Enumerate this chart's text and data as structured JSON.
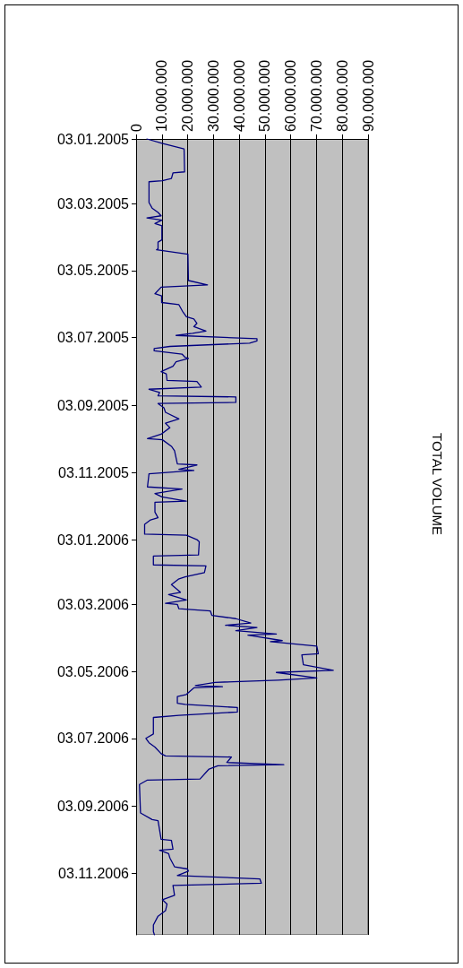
{
  "chart_data": {
    "type": "line",
    "title": "TOTAL VOLUME",
    "color": "#000080",
    "grid": "x",
    "line_style": "solid",
    "orientation": "horizontal",
    "x": [
      "2005-01-03",
      "2005-01-07",
      "2005-01-12",
      "2005-02-02",
      "2005-02-03",
      "2005-02-08",
      "2005-02-10",
      "2005-02-11",
      "2005-03-02",
      "2005-03-07",
      "2005-03-11",
      "2005-03-14",
      "2005-03-16",
      "2005-03-18",
      "2005-03-21",
      "2005-03-23",
      "2005-04-05",
      "2005-04-07",
      "2005-04-13",
      "2005-04-14",
      "2005-04-18",
      "2005-05-12",
      "2005-05-16",
      "2005-05-18",
      "2005-05-24",
      "2005-05-26",
      "2005-06-01",
      "2005-06-03",
      "2005-06-09",
      "2005-06-14",
      "2005-06-16",
      "2005-06-20",
      "2005-06-23",
      "2005-06-27",
      "2005-06-29",
      "2005-07-01",
      "2005-07-04",
      "2005-07-06",
      "2005-07-08",
      "2005-07-11",
      "2005-07-13",
      "2005-07-15",
      "2005-07-18",
      "2005-07-21",
      "2005-07-22",
      "2005-07-25",
      "2005-07-29",
      "2005-08-03",
      "2005-08-05",
      "2005-08-11",
      "2005-08-12",
      "2005-08-17",
      "2005-08-19",
      "2005-08-22",
      "2005-08-25",
      "2005-08-26",
      "2005-08-31",
      "2005-09-01",
      "2005-09-05",
      "2005-09-09",
      "2005-09-15",
      "2005-09-19",
      "2005-09-23",
      "2005-09-29",
      "2005-10-03",
      "2005-10-04",
      "2005-10-10",
      "2005-10-14",
      "2005-10-26",
      "2005-10-27",
      "2005-10-31",
      "2005-11-01",
      "2005-11-04",
      "2005-11-16",
      "2005-11-18",
      "2005-11-22",
      "2005-11-25",
      "2005-11-29",
      "2005-11-30",
      "2005-12-09",
      "2005-12-14",
      "2005-12-16",
      "2005-12-20",
      "2005-12-29",
      "2005-12-30",
      "2006-01-03",
      "2006-01-05",
      "2006-01-17",
      "2006-01-18",
      "2006-01-26",
      "2006-01-27",
      "2006-02-02",
      "2006-02-06",
      "2006-02-08",
      "2006-02-13",
      "2006-02-20",
      "2006-02-22",
      "2006-02-27",
      "2006-03-02",
      "2006-03-03",
      "2006-03-07",
      "2006-03-09",
      "2006-03-13",
      "2006-03-16",
      "2006-03-20",
      "2006-03-22",
      "2006-03-24",
      "2006-03-27",
      "2006-03-30",
      "2006-03-31",
      "2006-04-05",
      "2006-04-06",
      "2006-04-10",
      "2006-04-17",
      "2006-04-18",
      "2006-04-27",
      "2006-05-02",
      "2006-05-04",
      "2006-05-09",
      "2006-05-11",
      "2006-05-13",
      "2006-05-16",
      "2006-05-17",
      "2006-05-18",
      "2006-05-24",
      "2006-05-26",
      "2006-06-01",
      "2006-06-02",
      "2006-06-05",
      "2006-06-09",
      "2006-06-12",
      "2006-06-14",
      "2006-06-29",
      "2006-07-03",
      "2006-07-07",
      "2006-07-11",
      "2006-07-17",
      "2006-07-19",
      "2006-07-20",
      "2006-07-25",
      "2006-07-27",
      "2006-07-28",
      "2006-07-31",
      "2006-08-03",
      "2006-08-09",
      "2006-08-10",
      "2006-08-14",
      "2006-09-09",
      "2006-09-15",
      "2006-09-16",
      "2006-10-03",
      "2006-10-04",
      "2006-10-12",
      "2006-10-13",
      "2006-10-16",
      "2006-10-20",
      "2006-10-28",
      "2006-10-30",
      "2006-11-01",
      "2006-11-05",
      "2006-11-08",
      "2006-11-12",
      "2006-11-14",
      "2006-11-23",
      "2006-11-27",
      "2006-12-01",
      "2006-12-07",
      "2006-12-12",
      "2006-12-20",
      "2006-12-26",
      "2006-12-29"
    ],
    "values": [
      4200000,
      10000000,
      18600000,
      18800000,
      14300000,
      13700000,
      10200000,
      5000000,
      5000000,
      6200000,
      8500000,
      9700000,
      4200000,
      10000000,
      7300000,
      10000000,
      10000000,
      8500000,
      8500000,
      7900000,
      20100000,
      20300000,
      27700000,
      9700000,
      7300000,
      9900000,
      9900000,
      16600000,
      18000000,
      19500000,
      22400000,
      23600000,
      22400000,
      27100000,
      21900000,
      15500000,
      46900000,
      46900000,
      44000000,
      13100000,
      7000000,
      7000000,
      17800000,
      19000000,
      20300000,
      15500000,
      14300000,
      9700000,
      11700000,
      12000000,
      23600000,
      25300000,
      5000000,
      9100000,
      8500000,
      38700000,
      38700000,
      8500000,
      10800000,
      11400000,
      16600000,
      11400000,
      13100000,
      9700000,
      4400000,
      10200000,
      13700000,
      14900000,
      16000000,
      23600000,
      16600000,
      22400000,
      5000000,
      4400000,
      17800000,
      7300000,
      10000000,
      19500000,
      7300000,
      7300000,
      8500000,
      5600000,
      3300000,
      3300000,
      19500000,
      23600000,
      24500000,
      24200000,
      6700000,
      6700000,
      27100000,
      26500000,
      19000000,
      16400000,
      13700000,
      17200000,
      12600000,
      19500000,
      11400000,
      16000000,
      16600000,
      28800000,
      29400000,
      38700000,
      44500000,
      34700000,
      46900000,
      38700000,
      54400000,
      43400000,
      56700000,
      52100000,
      70100000,
      70700000,
      64300000,
      64900000,
      76500000,
      54400000,
      70100000,
      55000000,
      30600000,
      23000000,
      33500000,
      22400000,
      19500000,
      16000000,
      16000000,
      19000000,
      39300000,
      39300000,
      16600000,
      6700000,
      6700000,
      3800000,
      5000000,
      7300000,
      9700000,
      11400000,
      37000000,
      35200000,
      57300000,
      31700000,
      28300000,
      27100000,
      24800000,
      4400000,
      1300000,
      1700000,
      6200000,
      8500000,
      9700000,
      13700000,
      14300000,
      9100000,
      12600000,
      13100000,
      14900000,
      19900000,
      20300000,
      16000000,
      48000000,
      48600000,
      14300000,
      14900000,
      10200000,
      12000000,
      11400000,
      8500000,
      6700000,
      6700000,
      7100000
    ],
    "ylim": [
      "2006-12-29",
      "2005-01-03"
    ],
    "yticks": [
      {
        "value": "2005-01-03",
        "label": "03.01.2005"
      },
      {
        "value": "2005-03-03",
        "label": "03.03.2005"
      },
      {
        "value": "2005-05-03",
        "label": "03.05.2005"
      },
      {
        "value": "2005-07-03",
        "label": "03.07.2005"
      },
      {
        "value": "2005-09-03",
        "label": "03.09.2005"
      },
      {
        "value": "2005-11-03",
        "label": "03.11.2005"
      },
      {
        "value": "2006-01-03",
        "label": "03.01.2006"
      },
      {
        "value": "2006-03-03",
        "label": "03.03.2006"
      },
      {
        "value": "2006-05-03",
        "label": "03.05.2006"
      },
      {
        "value": "2006-07-03",
        "label": "03.07.2006"
      },
      {
        "value": "2006-09-03",
        "label": "03.09.2006"
      },
      {
        "value": "2006-11-03",
        "label": "03.11.2006"
      }
    ],
    "xlim": [
      0,
      90000000
    ],
    "xticks": [
      0,
      {
        "value": 10000000,
        "label": "10.000.000"
      },
      {
        "value": 20000000,
        "label": "20.000.000"
      },
      {
        "value": 30000000,
        "label": "30.000.000"
      },
      {
        "value": 40000000,
        "label": "40.000.000"
      },
      {
        "value": 50000000,
        "label": "50.000.000"
      },
      {
        "value": 60000000,
        "label": "60.000.000"
      },
      {
        "value": 70000000,
        "label": "70.000.000"
      },
      {
        "value": 80000000,
        "label": "80.000.000"
      },
      {
        "value": 90000000,
        "label": "90.000.000"
      }
    ]
  }
}
